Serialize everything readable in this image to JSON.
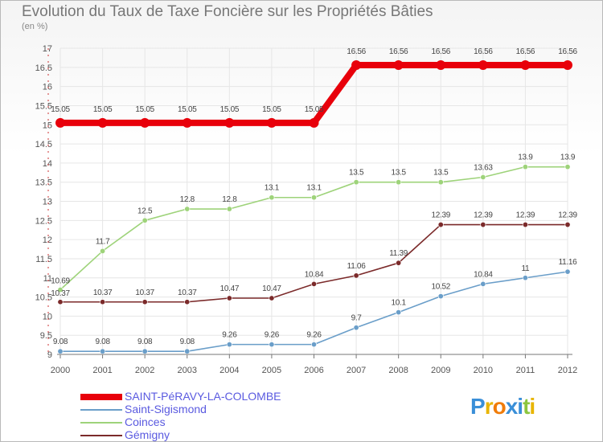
{
  "title": "Evolution du Taux de Taxe Foncière sur les Propriétés Bâties",
  "unit_label": "(en %)",
  "logo": {
    "text": "Proxiti",
    "letters": [
      {
        "ch": "P",
        "color": "#3a8fd8"
      },
      {
        "ch": "r",
        "color": "#e8b400"
      },
      {
        "ch": "o",
        "color": "#f07c0a"
      },
      {
        "ch": "x",
        "color": "#3a8fd8"
      },
      {
        "ch": "i",
        "color": "#3a8fd8"
      },
      {
        "ch": "t",
        "color": "#8cc63f"
      },
      {
        "ch": "i",
        "color": "#e8b400"
      }
    ]
  },
  "chart_data": {
    "type": "line",
    "title": "Evolution du Taux de Taxe Foncière sur les Propriétés Bâties",
    "ylabel": "(en %)",
    "xlabel": "",
    "ylim": [
      9,
      17
    ],
    "y_ticks": [
      "9",
      "9.5",
      "10",
      "10.5",
      "11",
      "11.5",
      "12",
      "12.5",
      "13",
      "13.5",
      "14",
      "14.5",
      "15",
      "15.5",
      "16",
      "16.5",
      "17"
    ],
    "categories": [
      "2000",
      "2001",
      "2002",
      "2003",
      "2004",
      "2005",
      "2006",
      "2007",
      "2008",
      "2009",
      "2010",
      "2011",
      "2012"
    ],
    "series": [
      {
        "name": "SAINT-PéRAVY-LA-COLOMBE",
        "color": "#e8000b",
        "bold": true,
        "values": [
          15.05,
          15.05,
          15.05,
          15.05,
          15.05,
          15.05,
          15.05,
          16.56,
          16.56,
          16.56,
          16.56,
          16.56,
          16.56
        ],
        "labels": [
          "15.05",
          "15.05",
          "15.05",
          "15.05",
          "15.05",
          "15.05",
          "15.05",
          "16.56",
          "16.56",
          "16.56",
          "16.56",
          "16.56",
          "16.56"
        ]
      },
      {
        "name": "Saint-Sigismond",
        "color": "#6a9ec9",
        "bold": false,
        "values": [
          9.08,
          9.08,
          9.08,
          9.08,
          9.26,
          9.26,
          9.26,
          9.7,
          10.1,
          10.52,
          10.84,
          11,
          11.16
        ],
        "labels": [
          "9.08",
          "9.08",
          "9.08",
          "9.08",
          "9.26",
          "9.26",
          "9.26",
          "9.7",
          "10.1",
          "10.52",
          "10.84",
          "11",
          "11.16"
        ]
      },
      {
        "name": "Coinces",
        "color": "#9ed37a",
        "bold": false,
        "values": [
          10.69,
          11.7,
          12.5,
          12.8,
          12.8,
          13.1,
          13.1,
          13.5,
          13.5,
          13.5,
          13.63,
          13.9,
          13.9
        ],
        "labels": [
          "10.69",
          "11.7",
          "12.5",
          "12.8",
          "12.8",
          "13.1",
          "13.1",
          "13.5",
          "13.5",
          "13.5",
          "13.63",
          "13.9",
          "13.9"
        ]
      },
      {
        "name": "Gémigny",
        "color": "#7b2a2a",
        "bold": false,
        "values": [
          10.37,
          10.37,
          10.37,
          10.37,
          10.47,
          10.47,
          10.84,
          11.06,
          11.39,
          12.39,
          12.39,
          12.39,
          12.39
        ],
        "labels": [
          "10.37",
          "10.37",
          "10.37",
          "10.37",
          "10.47",
          "10.47",
          "10.84",
          "11.06",
          "11.39",
          "12.39",
          "12.39",
          "12.39",
          "12.39"
        ]
      }
    ]
  }
}
